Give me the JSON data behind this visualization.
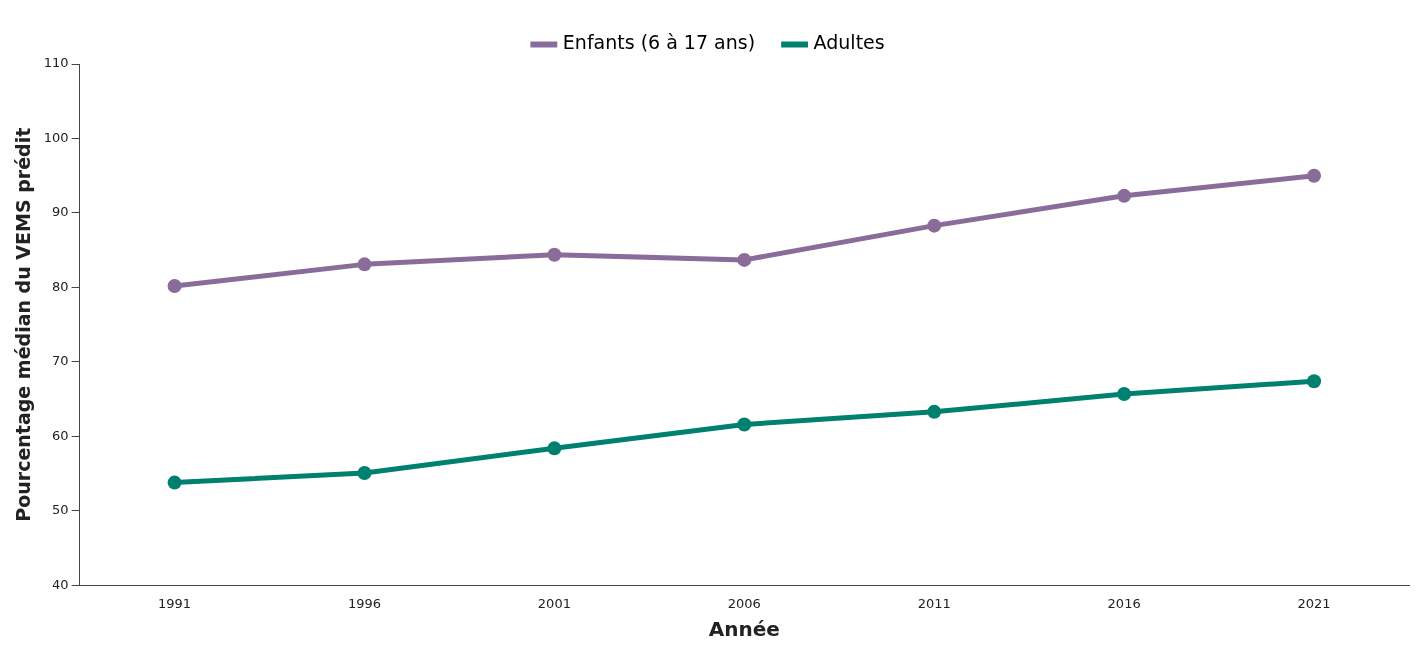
{
  "chart_data": {
    "type": "line",
    "xlabel": "Année",
    "ylabel": "Pourcentage médian du VEMS prédit",
    "categories": [
      "1991",
      "1996",
      "2001",
      "2006",
      "2011",
      "2016",
      "2021"
    ],
    "series": [
      {
        "name": "Enfants (6 à 17 ans)",
        "color": "#8a6c9a",
        "values": [
          80.2,
          83.1,
          84.4,
          83.7,
          88.3,
          92.3,
          95.0
        ]
      },
      {
        "name": "Adultes",
        "color": "#00806e",
        "values": [
          53.8,
          55.1,
          58.4,
          61.6,
          63.3,
          65.7,
          67.4
        ]
      }
    ],
    "ylim": [
      40,
      110
    ],
    "yticks": [
      40,
      50,
      60,
      70,
      80,
      90,
      100,
      110
    ],
    "grid": false,
    "legend": "top",
    "marker": "circle",
    "line_style": "solid"
  }
}
